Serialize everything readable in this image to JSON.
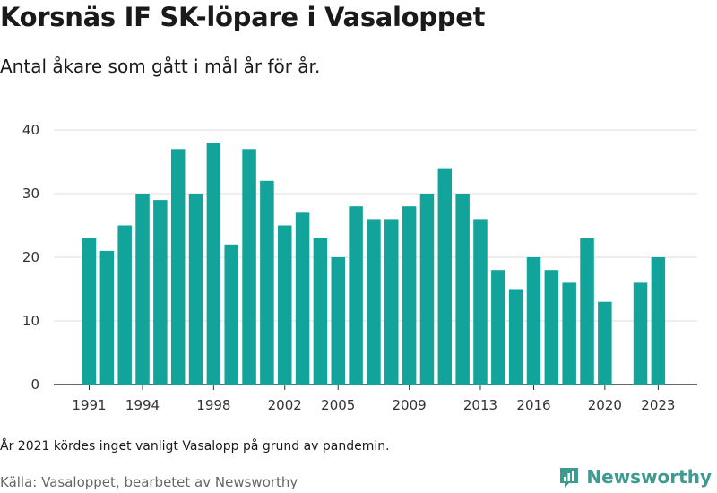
{
  "title": "Korsnäs IF SK-löpare i Vasaloppet",
  "subtitle": "Antal åkare som gått i mål år för år.",
  "footnote": "År 2021 kördes inget vanligt Vasalopp på grund av pandemin.",
  "source": "Källa: Vasaloppet, bearbetet av Newsworthy",
  "brand": {
    "name": "Newsworthy",
    "color": "#3f9b92",
    "icon": "newsworthy-logo-icon"
  },
  "colors": {
    "bar": "#12a39a",
    "grid": "#dddddd",
    "axis": "#333333"
  },
  "chart_data": {
    "type": "bar",
    "x": [
      1991,
      1992,
      1993,
      1994,
      1995,
      1996,
      1997,
      1998,
      1999,
      2000,
      2001,
      2002,
      2003,
      2004,
      2005,
      2006,
      2007,
      2008,
      2009,
      2010,
      2011,
      2012,
      2013,
      2014,
      2015,
      2016,
      2017,
      2018,
      2019,
      2020,
      2021,
      2022,
      2023
    ],
    "values": [
      23,
      21,
      25,
      30,
      29,
      37,
      30,
      38,
      22,
      37,
      32,
      25,
      27,
      23,
      20,
      28,
      26,
      26,
      28,
      30,
      34,
      30,
      26,
      18,
      15,
      20,
      18,
      16,
      23,
      13,
      null,
      16,
      20
    ],
    "x_tick_labels": [
      1991,
      1994,
      1998,
      2002,
      2005,
      2009,
      2013,
      2016,
      2020,
      2023
    ],
    "y_ticks": [
      0,
      10,
      20,
      30,
      40
    ],
    "ylim": [
      0,
      40
    ],
    "grid": true,
    "legend": "none"
  }
}
